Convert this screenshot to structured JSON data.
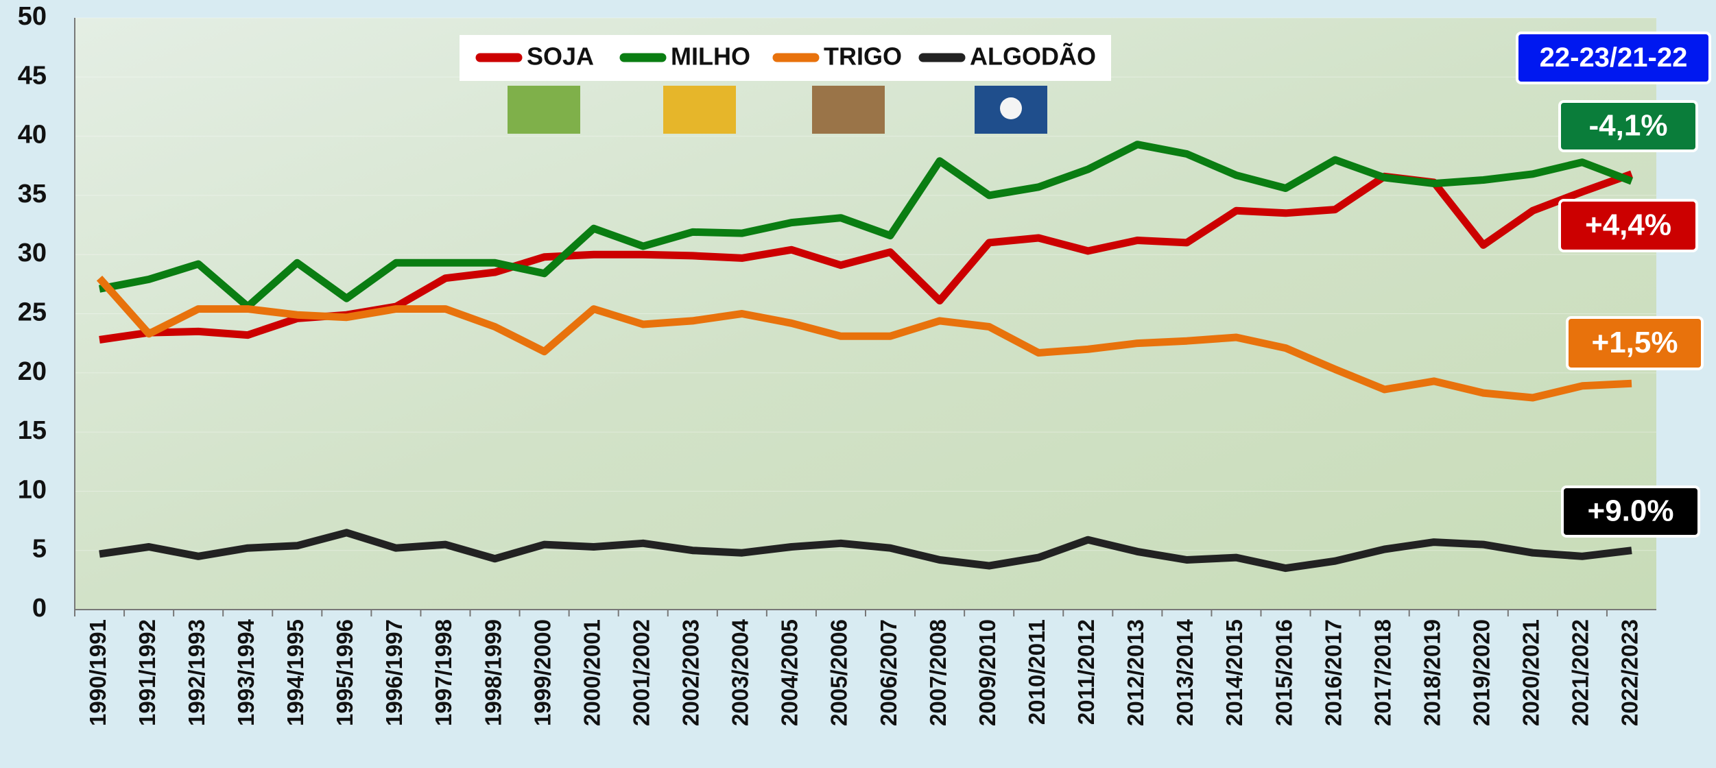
{
  "chart_data": {
    "type": "line",
    "categories": [
      "1990/1991",
      "1991/1992",
      "1992/1993",
      "1993/1994",
      "1994/1995",
      "1995/1996",
      "1996/1997",
      "1997/1998",
      "1998/1999",
      "1999/2000",
      "2000/2001",
      "2001/2002",
      "2002/2003",
      "2003/2004",
      "2004/2005",
      "2005/2006",
      "2006/2007",
      "2007/2008",
      "2009/2010",
      "2010/2011",
      "2011/2012",
      "2012/2013",
      "2013/2014",
      "2014/2015",
      "2015/2016",
      "2016/2017",
      "2017/2018",
      "2018/2019",
      "2019/2020",
      "2020/2021",
      "2021/2022",
      "2022/2023"
    ],
    "series": [
      {
        "name": "SOJA",
        "color": "#cc0000",
        "values": [
          22.8,
          23.4,
          23.5,
          23.2,
          24.6,
          24.9,
          25.6,
          28.0,
          28.5,
          29.8,
          30.0,
          30.0,
          29.9,
          29.7,
          30.4,
          29.1,
          30.2,
          26.1,
          31.0,
          31.4,
          30.3,
          31.2,
          31.0,
          33.7,
          33.5,
          33.8,
          36.6,
          36.1,
          30.8,
          33.7,
          35.3,
          36.8
        ]
      },
      {
        "name": "MILHO",
        "color": "#0a7d12",
        "values": [
          27.1,
          27.9,
          29.2,
          25.6,
          29.3,
          26.3,
          29.3,
          29.3,
          29.3,
          28.4,
          32.2,
          30.7,
          31.9,
          31.8,
          32.7,
          33.1,
          31.6,
          37.9,
          35.0,
          35.7,
          37.2,
          39.3,
          38.5,
          36.7,
          35.6,
          38.0,
          36.5,
          36.0,
          36.3,
          36.8,
          37.8,
          36.2
        ]
      },
      {
        "name": "TRIGO",
        "color": "#e8720c",
        "values": [
          28.0,
          23.3,
          25.4,
          25.4,
          24.9,
          24.7,
          25.4,
          25.4,
          23.9,
          21.8,
          25.4,
          24.1,
          24.4,
          25.0,
          24.2,
          23.1,
          23.1,
          24.4,
          23.9,
          21.7,
          22.0,
          22.5,
          22.7,
          23.0,
          22.1,
          20.3,
          18.6,
          19.3,
          18.3,
          17.9,
          18.9,
          19.1
        ]
      },
      {
        "name": "ALGODÃO",
        "color": "#222222",
        "values": [
          4.7,
          5.3,
          4.5,
          5.2,
          5.4,
          6.5,
          5.2,
          5.5,
          4.3,
          5.5,
          5.3,
          5.6,
          5.0,
          4.8,
          5.3,
          5.6,
          5.2,
          4.2,
          3.7,
          4.4,
          5.9,
          4.9,
          4.2,
          4.4,
          3.5,
          4.1,
          5.1,
          5.7,
          5.5,
          4.8,
          4.5,
          5.0
        ]
      }
    ],
    "ylim": [
      0,
      50
    ],
    "yticks": [
      0,
      5,
      10,
      15,
      20,
      25,
      30,
      35,
      40,
      45,
      50
    ],
    "grid": true,
    "annotations": [
      {
        "text": "22-23/21-22",
        "color": "#0018f0"
      },
      {
        "text": "-4,1%",
        "color": "#0a7d3a"
      },
      {
        "text": "+4,4%",
        "color": "#cc0000"
      },
      {
        "text": "+1,5%",
        "color": "#e8720c"
      },
      {
        "text": "+9.0%",
        "color": "#000000"
      }
    ]
  }
}
